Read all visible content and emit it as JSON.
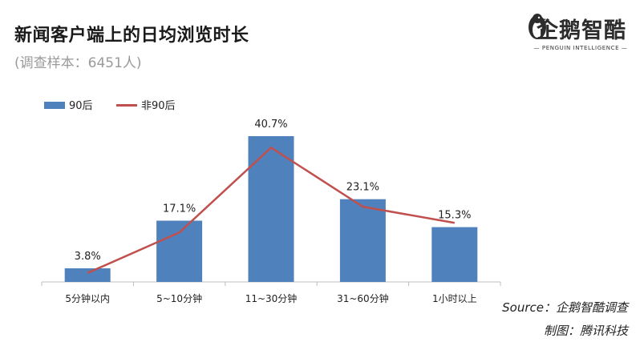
{
  "header": {
    "title": "新闻客户端上的日均浏览时长",
    "subtitle": "(调查样本：6451人)"
  },
  "logo": {
    "brand": "企鹅智酷",
    "tagline": "— PENGUIN INTELLIGENCE —",
    "icon": "penguin-icon"
  },
  "footer": {
    "source": "Source：企鹅智酷调查",
    "credit": "制图：腾讯科技"
  },
  "colors": {
    "bar": "#4f81bd",
    "line": "#c0504d"
  },
  "chart_data": {
    "type": "bar",
    "categories": [
      "5分钟以内",
      "5~10分钟",
      "11~30分钟",
      "31~60分钟",
      "1小时以上"
    ],
    "series": [
      {
        "name": "90后",
        "type": "bar",
        "values": [
          3.8,
          17.1,
          40.7,
          23.1,
          15.3
        ],
        "labels": [
          "3.8%",
          "17.1%",
          "40.7%",
          "23.1%",
          "15.3%"
        ]
      },
      {
        "name": "非90后",
        "type": "line",
        "values": [
          2.5,
          13.8,
          37.5,
          21.0,
          16.5
        ]
      }
    ],
    "legend_position": "top-left",
    "ylim": [
      0,
      45
    ],
    "grid": false
  }
}
